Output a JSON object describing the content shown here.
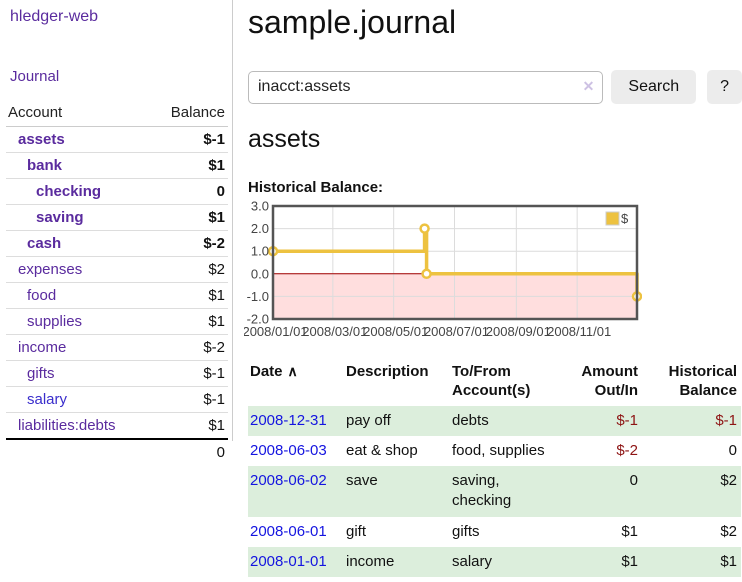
{
  "sidebar": {
    "app_title": "hledger-web",
    "journal_label": "Journal",
    "accounts_header": {
      "account": "Account",
      "balance": "Balance"
    },
    "accounts": [
      {
        "name": "assets",
        "balance": "$-1",
        "indent": 1,
        "bold": true,
        "balance_class": "neg-strong"
      },
      {
        "name": "bank",
        "balance": "$1",
        "indent": 2,
        "bold": true,
        "balance_class": ""
      },
      {
        "name": "checking",
        "balance": "0",
        "indent": 3,
        "bold": true,
        "balance_class": ""
      },
      {
        "name": "saving",
        "balance": "$1",
        "indent": 3,
        "bold": true,
        "balance_class": ""
      },
      {
        "name": "cash",
        "balance": "$-2",
        "indent": 2,
        "bold": true,
        "balance_class": "neg-strong"
      },
      {
        "name": "expenses",
        "balance": "$2",
        "indent": 1,
        "bold": false,
        "balance_class": ""
      },
      {
        "name": "food",
        "balance": "$1",
        "indent": 2,
        "bold": false,
        "balance_class": ""
      },
      {
        "name": "supplies",
        "balance": "$1",
        "indent": 2,
        "bold": false,
        "balance_class": ""
      },
      {
        "name": "income",
        "balance": "$-2",
        "indent": 1,
        "bold": false,
        "balance_class": "neg-muted"
      },
      {
        "name": "gifts",
        "balance": "$-1",
        "indent": 2,
        "bold": false,
        "balance_class": "neg-muted"
      },
      {
        "name": "salary",
        "balance": "$-1",
        "indent": 2,
        "bold": false,
        "balance_class": "neg-muted",
        "link_color": "blue"
      },
      {
        "name": "liabilities:debts",
        "balance": "$1",
        "indent": 1,
        "bold": false,
        "balance_class": ""
      }
    ],
    "total": "0"
  },
  "main": {
    "title": "sample.journal",
    "search": {
      "value": "inacct:assets",
      "clear_icon": "✕",
      "button_label": "Search",
      "help_label": "?"
    },
    "account_heading": "assets",
    "chart_title": "Historical Balance:",
    "register": {
      "headers": {
        "date": "Date",
        "sort_icon": "∧",
        "description": "Description",
        "accounts_line1": "To/From",
        "accounts_line2": "Account(s)",
        "amount_line1": "Amount",
        "amount_line2": "Out/In",
        "balance_line1": "Historical",
        "balance_line2": "Balance"
      },
      "rows": [
        {
          "date": "2008-12-31",
          "description": "pay off",
          "accounts": "debts",
          "amount": "$-1",
          "amount_negative": true,
          "balance": "$-1",
          "balance_negative": true
        },
        {
          "date": "2008-06-03",
          "description": "eat & shop",
          "accounts": "food, supplies",
          "amount": "$-2",
          "amount_negative": true,
          "balance": "0",
          "balance_negative": false
        },
        {
          "date": "2008-06-02",
          "description": "save",
          "accounts": "saving, checking",
          "amount": "0",
          "amount_negative": false,
          "balance": "$2",
          "balance_negative": false
        },
        {
          "date": "2008-06-01",
          "description": "gift",
          "accounts": "gifts",
          "amount": "$1",
          "amount_negative": false,
          "balance": "$2",
          "balance_negative": false
        },
        {
          "date": "2008-01-01",
          "description": "income",
          "accounts": "salary",
          "amount": "$1",
          "amount_negative": false,
          "balance": "$1",
          "balance_negative": false
        }
      ]
    }
  },
  "colors": {
    "accent_purple": "#5a2b9e",
    "link_blue": "#1414e0",
    "negative_red": "#8e1414",
    "negative_muted": "#c98c8c",
    "series_yellow": "#edc240",
    "row_green": "#dceedc",
    "negative_region_pink": "#ffdede",
    "zero_line_red": "#a40000",
    "chart_border_gray": "#545454"
  },
  "chart_data": {
    "type": "line",
    "step": true,
    "title": "Historical Balance:",
    "series": [
      {
        "name": "$",
        "color": "#edc240",
        "points": [
          [
            "2008-01-01",
            1
          ],
          [
            "2008-06-01",
            2
          ],
          [
            "2008-06-03",
            0
          ],
          [
            "2008-12-31",
            -1
          ]
        ]
      }
    ],
    "x_ticks": [
      "2008/01/01",
      "2008/03/01",
      "2008/05/01",
      "2008/07/01",
      "2008/09/01",
      "2008/11/01"
    ],
    "y_ticks": [
      3.0,
      2.0,
      1.0,
      0.0,
      -1.0,
      -2.0
    ],
    "ylim": [
      -2,
      3
    ],
    "x_range_days": 365,
    "grid": true,
    "negative_region_fill": "#ffdede",
    "zero_line_color": "#a40000",
    "legend": {
      "label": "$",
      "position": "top-right"
    }
  }
}
